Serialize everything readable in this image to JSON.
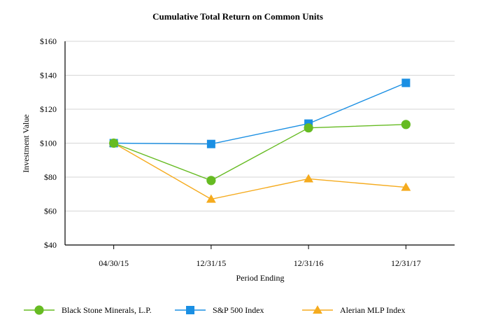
{
  "chart_data": {
    "type": "line",
    "title": "Cumulative Total Return on Common Units",
    "xlabel": "Period Ending",
    "ylabel": "Investment Value",
    "categories": [
      "04/30/15",
      "12/31/15",
      "12/31/16",
      "12/31/17"
    ],
    "ylim": [
      40,
      160
    ],
    "yticks": [
      40,
      60,
      80,
      100,
      120,
      140,
      160
    ],
    "ytick_labels": [
      "$40",
      "$60",
      "$80",
      "$100",
      "$120",
      "$140",
      "$160"
    ],
    "grid": true,
    "legend_position": "bottom",
    "series": [
      {
        "name": "Black Stone Minerals, L.P.",
        "color": "#66bb22",
        "marker": "circle",
        "values": [
          100,
          78,
          109,
          111
        ]
      },
      {
        "name": "S&P 500 Index",
        "color": "#1a8fe3",
        "marker": "square",
        "values": [
          100,
          99.5,
          111.5,
          135.5
        ]
      },
      {
        "name": "Alerian MLP Index",
        "color": "#f5ab1e",
        "marker": "triangle",
        "values": [
          100,
          67,
          79,
          74
        ]
      }
    ]
  }
}
